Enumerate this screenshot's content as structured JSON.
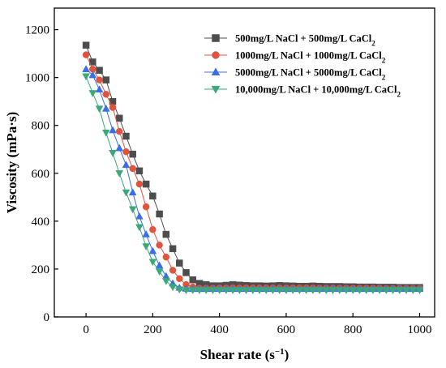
{
  "chart_data": {
    "type": "line",
    "xlabel": "Shear rate (s",
    "xlabel_sup": "−1",
    "xlabel_tail": ")",
    "ylabel": "Viscosity (mPa·s)",
    "xlim": [
      -95,
      1045
    ],
    "ylim": [
      0,
      1290
    ],
    "xticks": [
      0,
      200,
      400,
      600,
      800,
      1000
    ],
    "yticks": [
      0,
      200,
      400,
      600,
      800,
      1000,
      1200
    ],
    "grid": false,
    "legend_position": "top-right",
    "series": [
      {
        "name": "500mg/L NaCl + 500mg/L CaCl",
        "name_sub": "2",
        "marker": "square",
        "color": "#4d4d4d",
        "x": [
          0,
          20,
          40,
          60,
          80,
          100,
          120,
          140,
          160,
          180,
          200,
          220,
          240,
          260,
          280,
          300,
          320,
          340,
          360,
          380,
          400,
          420,
          440,
          460,
          480,
          500,
          520,
          540,
          560,
          580,
          600,
          620,
          640,
          660,
          680,
          700,
          720,
          740,
          760,
          780,
          800,
          820,
          840,
          860,
          880,
          900,
          920,
          940,
          960,
          980,
          1000
        ],
        "y": [
          1135,
          1065,
          1030,
          990,
          900,
          830,
          755,
          680,
          610,
          555,
          505,
          430,
          345,
          285,
          225,
          185,
          155,
          140,
          135,
          130,
          130,
          132,
          135,
          133,
          131,
          130,
          130,
          129,
          130,
          131,
          130,
          129,
          128,
          128,
          129,
          128,
          127,
          127,
          127,
          126,
          126,
          125,
          125,
          125,
          124,
          124,
          124,
          123,
          123,
          123,
          123
        ]
      },
      {
        "name": "1000mg/L NaCl + 1000mg/L CaCl",
        "name_sub": "2",
        "marker": "circle",
        "color": "#e0533f",
        "x": [
          0,
          20,
          40,
          60,
          80,
          100,
          120,
          140,
          160,
          180,
          200,
          220,
          240,
          260,
          280,
          300,
          320,
          340,
          360,
          380,
          400,
          420,
          440,
          460,
          480,
          500,
          520,
          540,
          560,
          580,
          600,
          620,
          640,
          660,
          680,
          700,
          720,
          740,
          760,
          780,
          800,
          820,
          840,
          860,
          880,
          900,
          920,
          940,
          960,
          980,
          1000
        ],
        "y": [
          1095,
          1035,
          990,
          930,
          875,
          775,
          690,
          620,
          555,
          460,
          365,
          300,
          250,
          195,
          160,
          135,
          125,
          120,
          120,
          120,
          121,
          121,
          121,
          121,
          121,
          121,
          121,
          121,
          121,
          121,
          121,
          121,
          121,
          121,
          121,
          120,
          120,
          120,
          120,
          120,
          120,
          120,
          120,
          120,
          120,
          119,
          119,
          119,
          119,
          119,
          119
        ]
      },
      {
        "name": "5000mg/L NaCl + 5000mg/L CaCl",
        "name_sub": "2",
        "marker": "triangle-up",
        "color": "#3b6de8",
        "x": [
          0,
          20,
          40,
          60,
          80,
          100,
          120,
          140,
          160,
          180,
          200,
          220,
          240,
          260,
          280,
          300,
          320,
          340,
          360,
          380,
          400,
          420,
          440,
          460,
          480,
          500,
          520,
          540,
          560,
          580,
          600,
          620,
          640,
          660,
          680,
          700,
          720,
          740,
          760,
          780,
          800,
          820,
          840,
          860,
          880,
          900,
          920,
          940,
          960,
          980,
          1000
        ],
        "y": [
          1035,
          1010,
          950,
          870,
          780,
          705,
          635,
          520,
          420,
          345,
          275,
          215,
          170,
          140,
          122,
          118,
          117,
          117,
          117,
          117,
          117,
          117,
          117,
          117,
          117,
          117,
          117,
          117,
          117,
          117,
          117,
          117,
          117,
          117,
          117,
          117,
          117,
          117,
          117,
          117,
          117,
          117,
          117,
          117,
          117,
          117,
          117,
          117,
          117,
          117,
          117
        ]
      },
      {
        "name": "10,000mg/L NaCl + 10,000mg/L CaCl",
        "name_sub": "2",
        "marker": "triangle-down",
        "color": "#3aa878",
        "x": [
          0,
          20,
          40,
          60,
          80,
          100,
          120,
          140,
          160,
          180,
          200,
          220,
          240,
          260,
          280,
          300,
          320,
          340,
          360,
          380,
          400,
          420,
          440,
          460,
          480,
          500,
          520,
          540,
          560,
          580,
          600,
          620,
          640,
          660,
          680,
          700,
          720,
          740,
          760,
          780,
          800,
          820,
          840,
          860,
          880,
          900,
          920,
          940,
          960,
          980,
          1000
        ],
        "y": [
          1005,
          935,
          870,
          770,
          685,
          600,
          520,
          450,
          375,
          295,
          230,
          190,
          150,
          125,
          115,
          112,
          112,
          112,
          112,
          112,
          112,
          112,
          112,
          112,
          112,
          112,
          112,
          112,
          112,
          112,
          112,
          112,
          112,
          112,
          112,
          112,
          112,
          112,
          112,
          112,
          112,
          112,
          112,
          112,
          112,
          112,
          112,
          112,
          112,
          112,
          112
        ]
      }
    ]
  }
}
